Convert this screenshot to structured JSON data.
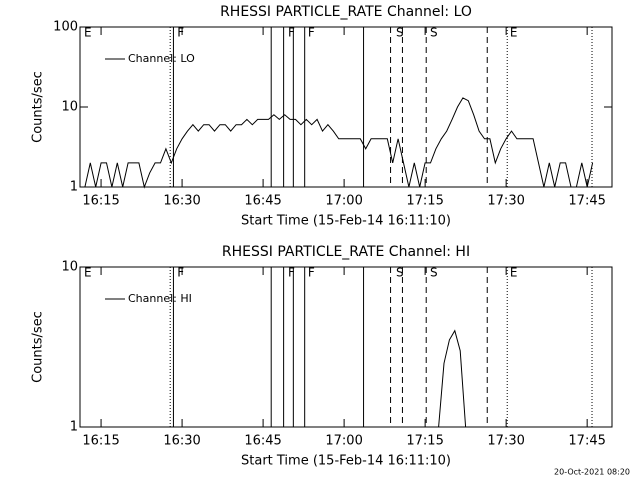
{
  "chart_data": [
    {
      "type": "line",
      "title": "RHESSI PARTICLE_RATE Channel: LO",
      "xlabel": "Start Time (15-Feb-14 16:11:10)",
      "ylabel": "Counts/sec",
      "log_scale": true,
      "legend": "upper left",
      "x": [
        972,
        973,
        974,
        975,
        976,
        977,
        978,
        979,
        980,
        981,
        982,
        983,
        984,
        985,
        986,
        987,
        988,
        989,
        990,
        991,
        992,
        993,
        994,
        995,
        996,
        997,
        998,
        999,
        1000,
        1001,
        1002,
        1003,
        1004,
        1005,
        1006,
        1007,
        1008,
        1009,
        1010,
        1011,
        1012,
        1013,
        1014,
        1015,
        1016,
        1017,
        1018,
        1019,
        1020,
        1021,
        1022,
        1023,
        1024,
        1025,
        1026,
        1027,
        1028,
        1029,
        1030,
        1031,
        1032,
        1033,
        1034,
        1035,
        1036,
        1037,
        1038,
        1039,
        1040,
        1041,
        1042,
        1043,
        1044,
        1045,
        1046,
        1047,
        1048,
        1049,
        1050,
        1051,
        1052,
        1053,
        1054,
        1055,
        1056,
        1057,
        1058,
        1059,
        1060,
        1061,
        1062,
        1063,
        1064,
        1065,
        1066
      ],
      "series": [
        {
          "name": "Channel: LO",
          "color": "#000000",
          "values": [
            1,
            2,
            1,
            2,
            2,
            1,
            2,
            1,
            2,
            2,
            2,
            1,
            1.5,
            2,
            2,
            3,
            2,
            3,
            4,
            5,
            6,
            5,
            6,
            6,
            5,
            6,
            6,
            5,
            6,
            6,
            7,
            6,
            7,
            7,
            7,
            8,
            7,
            8,
            7,
            7,
            6,
            7,
            6,
            7,
            5,
            6,
            5,
            4,
            4,
            4,
            4,
            4,
            3,
            4,
            4,
            4,
            4,
            2,
            4,
            2,
            1,
            2,
            1,
            2,
            2,
            3,
            4,
            5,
            7,
            10,
            13,
            12,
            8,
            5,
            4,
            4,
            2,
            3,
            4,
            5,
            4,
            4,
            4,
            4,
            2,
            1,
            2,
            1,
            2,
            2,
            1,
            1,
            2,
            1,
            2
          ]
        }
      ],
      "xlim": [
        971.1,
        1069.6
      ],
      "ylim": [
        1,
        100
      ],
      "xticks": [
        {
          "value": 975,
          "label": "16:15"
        },
        {
          "value": 990,
          "label": "16:30"
        },
        {
          "value": 1005,
          "label": "16:45"
        },
        {
          "value": 1020,
          "label": "17:00"
        },
        {
          "value": 1035,
          "label": "17:15"
        },
        {
          "value": 1050,
          "label": "17:30"
        },
        {
          "value": 1065,
          "label": "17:45"
        }
      ],
      "yticks": [
        1,
        10,
        100
      ],
      "markers": [
        {
          "x": 987.8,
          "style": "dotted"
        },
        {
          "x": 988.4,
          "style": "solid"
        },
        {
          "x": 1006.5,
          "style": "solid"
        },
        {
          "x": 1008.8,
          "style": "solid"
        },
        {
          "x": 1010.6,
          "style": "solid"
        },
        {
          "x": 1012.7,
          "style": "solid"
        },
        {
          "x": 1023.6,
          "style": "solid"
        },
        {
          "x": 1028.6,
          "style": "dashed"
        },
        {
          "x": 1030.8,
          "style": "dashed"
        },
        {
          "x": 1035.2,
          "style": "dashed"
        },
        {
          "x": 1046.5,
          "style": "dashed"
        },
        {
          "x": 1050.2,
          "style": "dotted"
        },
        {
          "x": 1065.9,
          "style": "dotted"
        }
      ],
      "flags": [
        {
          "label": "E",
          "x": 971.85
        },
        {
          "label": "F",
          "x": 989.1
        },
        {
          "label": "F",
          "x": 1009.6
        },
        {
          "label": "F",
          "x": 1013.3
        },
        {
          "label": "S",
          "x": 1029.6
        },
        {
          "label": "S",
          "x": 1035.9
        },
        {
          "label": "E",
          "x": 1050.7
        }
      ]
    },
    {
      "type": "line",
      "title": "RHESSI PARTICLE_RATE Channel: HI",
      "xlabel": "Start Time (15-Feb-14 16:11:10)",
      "ylabel": "Counts/sec",
      "log_scale": true,
      "legend": "upper left",
      "x": [
        1037.5,
        1038.5,
        1039.5,
        1040.5,
        1041.5,
        1042.5
      ],
      "series": [
        {
          "name": "Channel: HI",
          "color": "#000000",
          "values": [
            1,
            2.5,
            3.5,
            4,
            3,
            1
          ]
        }
      ],
      "xlim": [
        971.1,
        1069.6
      ],
      "ylim": [
        1,
        10
      ],
      "xticks": [
        {
          "value": 975,
          "label": "16:15"
        },
        {
          "value": 990,
          "label": "16:30"
        },
        {
          "value": 1005,
          "label": "16:45"
        },
        {
          "value": 1020,
          "label": "17:00"
        },
        {
          "value": 1035,
          "label": "17:15"
        },
        {
          "value": 1050,
          "label": "17:30"
        },
        {
          "value": 1065,
          "label": "17:45"
        }
      ],
      "yticks": [
        1,
        10
      ],
      "markers": [
        {
          "x": 987.8,
          "style": "dotted"
        },
        {
          "x": 988.4,
          "style": "solid"
        },
        {
          "x": 1006.5,
          "style": "solid"
        },
        {
          "x": 1008.8,
          "style": "solid"
        },
        {
          "x": 1010.6,
          "style": "solid"
        },
        {
          "x": 1012.7,
          "style": "solid"
        },
        {
          "x": 1023.6,
          "style": "solid"
        },
        {
          "x": 1028.6,
          "style": "dashed"
        },
        {
          "x": 1030.8,
          "style": "dashed"
        },
        {
          "x": 1035.2,
          "style": "dashed"
        },
        {
          "x": 1046.5,
          "style": "dashed"
        },
        {
          "x": 1050.2,
          "style": "dotted"
        },
        {
          "x": 1065.9,
          "style": "dotted"
        }
      ],
      "flags": [
        {
          "label": "E",
          "x": 971.85
        },
        {
          "label": "F",
          "x": 989.1
        },
        {
          "label": "F",
          "x": 1009.6
        },
        {
          "label": "F",
          "x": 1013.3
        },
        {
          "label": "S",
          "x": 1029.6
        },
        {
          "label": "S",
          "x": 1035.9
        },
        {
          "label": "E",
          "x": 1050.7
        }
      ]
    }
  ],
  "footer": "20-Oct-2021 08:20"
}
